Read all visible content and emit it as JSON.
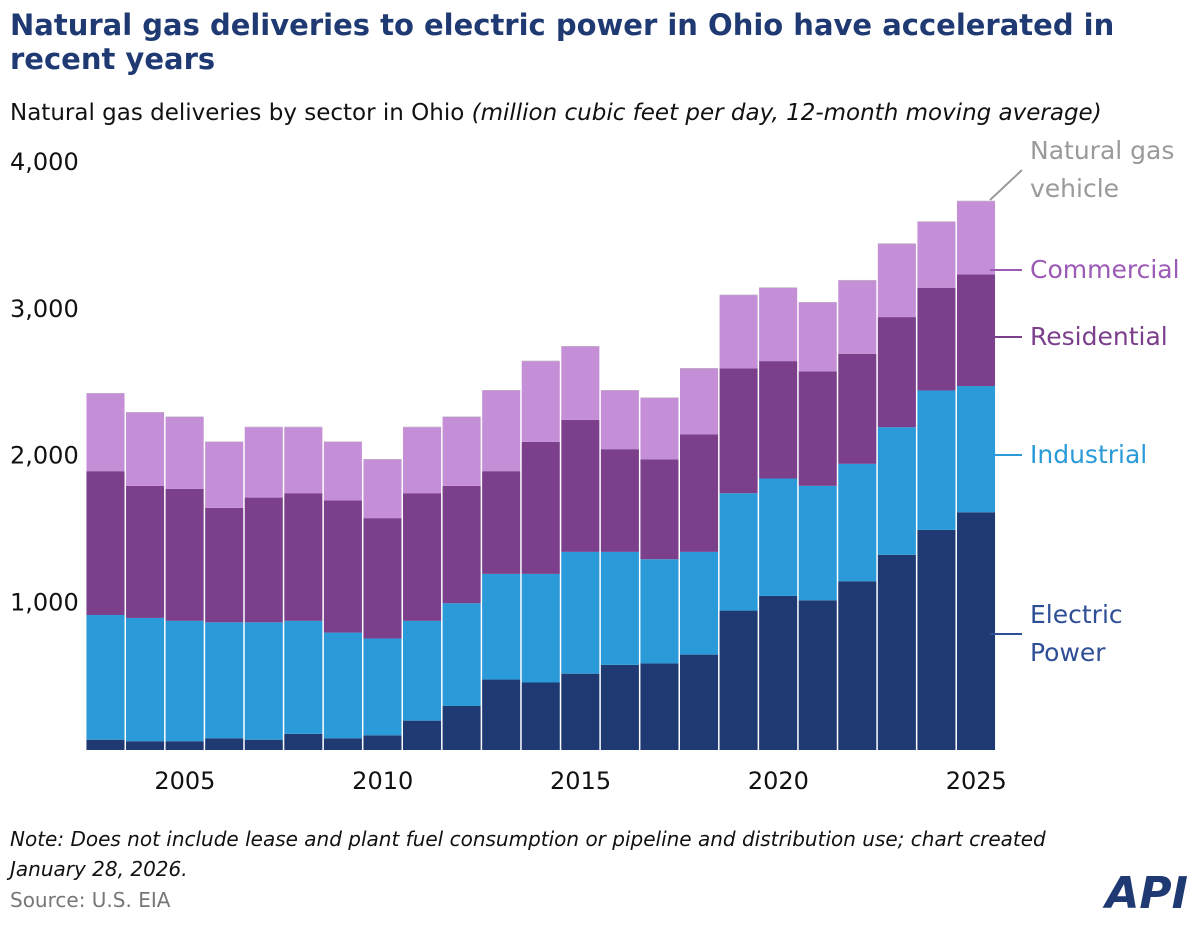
{
  "chart_data": {
    "type": "stacked-bar",
    "title": "Natural gas deliveries to electric power in Ohio have accelerated in recent years",
    "subtitle": "Natural gas deliveries by sector in Ohio",
    "units": "(million cubic feet per day, 12-month moving average)",
    "x": [
      2003,
      2004,
      2005,
      2006,
      2007,
      2008,
      2009,
      2010,
      2011,
      2012,
      2013,
      2014,
      2015,
      2016,
      2017,
      2018,
      2019,
      2020,
      2021,
      2022,
      2023,
      2024,
      2025
    ],
    "xlim": [
      2002.4,
      2025.6
    ],
    "xticks": [
      2005,
      2010,
      2015,
      2020,
      2025
    ],
    "ylim": [
      0,
      4000
    ],
    "yticks": [
      0,
      {
        "value": 1000,
        "label": "1,000"
      },
      {
        "value": 2000,
        "label": "2,000"
      },
      {
        "value": 3000,
        "label": "3,000"
      },
      {
        "value": 4000,
        "label": "4,000"
      }
    ],
    "series": [
      {
        "name": "Electric Power",
        "color": "#1f3a73",
        "label_color": "#2e4f96",
        "values": [
          70,
          60,
          60,
          80,
          70,
          110,
          80,
          100,
          200,
          300,
          480,
          460,
          520,
          580,
          590,
          650,
          950,
          1050,
          1020,
          1150,
          1330,
          1500,
          1620
        ]
      },
      {
        "name": "Industrial",
        "color": "#2a9ad8",
        "label_color": "#2a9ad8",
        "values": [
          850,
          840,
          820,
          790,
          800,
          770,
          720,
          660,
          680,
          700,
          720,
          740,
          830,
          770,
          710,
          700,
          800,
          800,
          780,
          800,
          870,
          950,
          860
        ]
      },
      {
        "name": "Residential",
        "color": "#7b3f8c",
        "label_color": "#7b3f8c",
        "values": [
          980,
          900,
          900,
          780,
          850,
          870,
          900,
          820,
          870,
          800,
          700,
          900,
          900,
          700,
          680,
          800,
          850,
          800,
          780,
          750,
          750,
          700,
          760
        ]
      },
      {
        "name": "Commercial",
        "color": "#c58fd8",
        "label_color": "#9a5ab5",
        "values": [
          530,
          500,
          490,
          450,
          480,
          450,
          400,
          400,
          450,
          470,
          550,
          550,
          500,
          400,
          420,
          450,
          500,
          500,
          470,
          500,
          500,
          450,
          500
        ]
      },
      {
        "name": "Natural gas vehicle",
        "color": "#b5b5b5",
        "label_color": "#9a9a9a",
        "values": [
          3,
          3,
          3,
          3,
          3,
          3,
          3,
          3,
          3,
          3,
          3,
          3,
          3,
          3,
          3,
          3,
          3,
          3,
          3,
          3,
          3,
          3,
          3
        ]
      }
    ],
    "note": "Note: Does not include lease and plant fuel consumption or pipeline and distribution use; chart created January 28, 2026.",
    "source": "Source: U.S. EIA",
    "logo": "API"
  }
}
